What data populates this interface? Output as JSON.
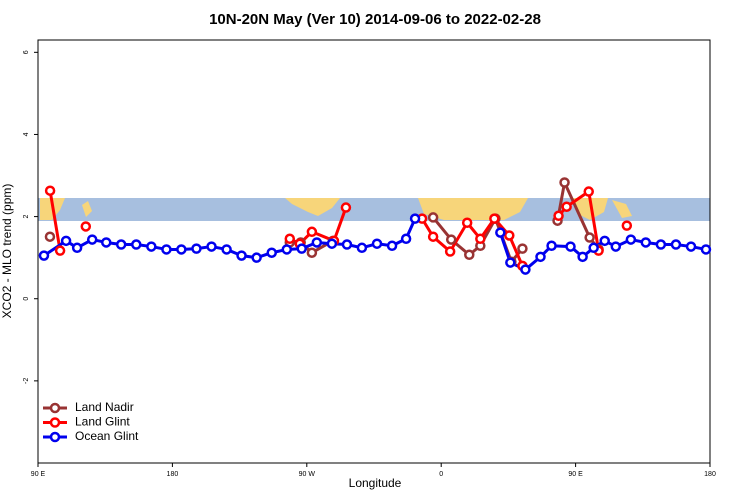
{
  "chart_data": {
    "type": "line",
    "title": "10N-20N May (Ver 10)   2014-09-06 to 2022-02-28",
    "x_label": "Longitude",
    "y_label": "XCO2 - MLO trend (ppm)",
    "xlim": [
      90,
      540
    ],
    "ylim": [
      -4,
      6.3
    ],
    "xticks": [
      {
        "value": 90,
        "label": "90 E"
      },
      {
        "value": 180,
        "label": "180"
      },
      {
        "value": 270,
        "label": "90 W"
      },
      {
        "value": 360,
        "label": "0"
      },
      {
        "value": 450,
        "label": "90 E"
      },
      {
        "value": 540,
        "label": "180"
      }
    ],
    "yticks": [
      -2,
      0,
      2,
      4,
      6
    ],
    "legend": "bottom-left",
    "series": [
      {
        "name": "Land Nadir",
        "color": "#993333",
        "x": [
          98,
          150,
          258.6,
          265.9,
          273.4,
          287.5,
          350,
          354.6,
          366.7,
          378.8,
          386.2,
          396.3,
          407,
          414.4,
          435,
          437.9,
          442.6,
          459.4,
          465.4
        ],
        "values": [
          1.51,
          null,
          1.37,
          1.37,
          1.12,
          1.41,
          null,
          1.98,
          1.44,
          1.07,
          1.29,
          1.95,
          0.9,
          1.22,
          null,
          1.9,
          2.83,
          1.49,
          1.2
        ]
      },
      {
        "name": "Land Glint",
        "color": "#ff0000",
        "x": [
          98.1,
          104.8,
          113,
          122,
          200,
          258.6,
          265.3,
          273.4,
          288.2,
          296.2,
          320,
          347.2,
          354.6,
          366,
          377.4,
          386.2,
          395.6,
          405.6,
          414.4,
          425,
          438.6,
          444,
          458.8,
          465.4,
          475,
          484.3
        ],
        "values": [
          2.63,
          1.17,
          null,
          1.76,
          null,
          1.46,
          1.34,
          1.63,
          1.41,
          2.22,
          null,
          1.95,
          1.51,
          1.15,
          1.85,
          1.46,
          1.95,
          1.54,
          0.8,
          null,
          2.02,
          2.24,
          2.61,
          1.17,
          null,
          1.78
        ]
      },
      {
        "name": "Ocean Glint",
        "color": "#0000ee",
        "x": [
          94,
          108.8,
          116.2,
          126.3,
          135.7,
          145.7,
          155.8,
          165.9,
          176,
          186,
          196.1,
          206.2,
          216.3,
          226.3,
          236.4,
          246.5,
          256.6,
          266.6,
          276.7,
          286.8,
          296.9,
          306.9,
          317,
          327.1,
          336.5,
          342.5,
          371,
          399.6,
          406.3,
          416.4,
          426.5,
          433.9,
          446.6,
          454.7,
          462.1,
          469.5,
          476.9,
          487,
          497,
          507.1,
          517.2,
          527.3,
          537.3
        ],
        "values": [
          1.05,
          1.41,
          1.24,
          1.44,
          1.37,
          1.32,
          1.32,
          1.27,
          1.2,
          1.2,
          1.22,
          1.27,
          1.2,
          1.05,
          1.0,
          1.12,
          1.2,
          1.22,
          1.37,
          1.34,
          1.32,
          1.24,
          1.34,
          1.29,
          1.46,
          1.95,
          null,
          1.61,
          0.88,
          0.71,
          1.02,
          1.29,
          1.27,
          1.02,
          1.24,
          1.41,
          1.27,
          1.44,
          1.37,
          1.32,
          1.32,
          1.27,
          1.2
        ]
      }
    ]
  }
}
